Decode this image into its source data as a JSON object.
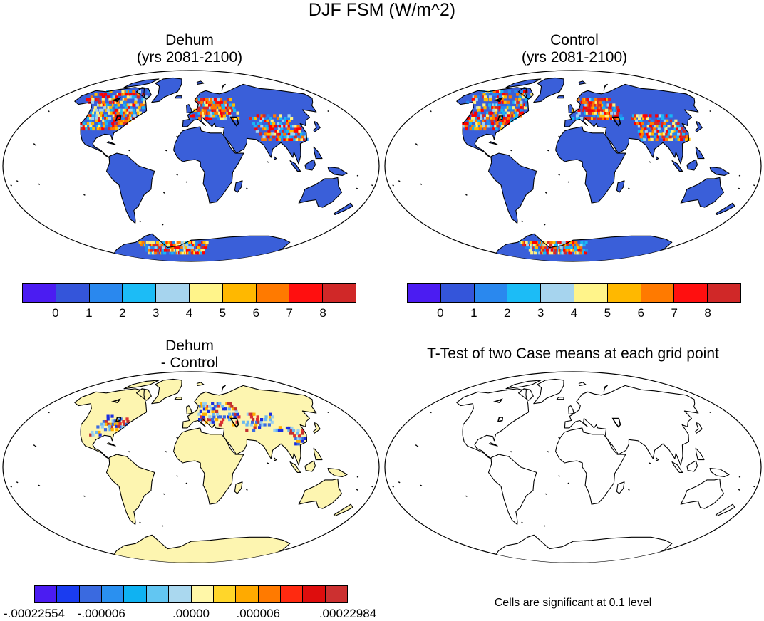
{
  "figure": {
    "title": "DJF FSM (W/m^2)"
  },
  "panels": [
    {
      "id": "dehum",
      "title_line1": "Dehum",
      "title_line2": "(yrs 2081-2100)",
      "land_color": "#3a5fd9",
      "hotspot_colors": [
        "#d62828",
        "#ff0000",
        "#ff7a00",
        "#ffbb00",
        "#ffef80",
        "#a0d2f0",
        "#19b6f5",
        "#2488f0"
      ],
      "colorbar": {
        "colors": [
          "#4b1cf2",
          "#3455da",
          "#2a88ee",
          "#1cbcf6",
          "#a6d4ee",
          "#fff48a",
          "#ffb800",
          "#ff7a00",
          "#ff0f0f",
          "#d02828"
        ],
        "labels": [
          "0",
          "1",
          "2",
          "3",
          "4",
          "5",
          "6",
          "7",
          "8"
        ]
      }
    },
    {
      "id": "control",
      "title_line1": "Control",
      "title_line2": "(yrs 2081-2100)",
      "land_color": "#3a5fd9",
      "hotspot_colors": [
        "#d62828",
        "#ff0000",
        "#ff7a00",
        "#ffbb00",
        "#ffef80",
        "#a0d2f0",
        "#19b6f5",
        "#2488f0"
      ],
      "colorbar": {
        "colors": [
          "#4b1cf2",
          "#3455da",
          "#2a88ee",
          "#1cbcf6",
          "#a6d4ee",
          "#fff48a",
          "#ffb800",
          "#ff7a00",
          "#ff0f0f",
          "#d02828"
        ],
        "labels": [
          "0",
          "1",
          "2",
          "3",
          "4",
          "5",
          "6",
          "7",
          "8"
        ]
      }
    },
    {
      "id": "diff",
      "title_line1": "Dehum",
      "title_line2": "- Control",
      "land_color": "#fdf5b0",
      "hotspot_colors": [
        "#1a2ee0",
        "#3b6be0",
        "#6ab8f0",
        "#c23030",
        "#e03030",
        "#ffb000",
        "#9acfee"
      ],
      "colorbar": {
        "colors": [
          "#4b1cf2",
          "#1a3cf0",
          "#3a6ae0",
          "#2a90f0",
          "#0fb2f2",
          "#62c6f2",
          "#aad8ef",
          "#fff7a8",
          "#ffd62a",
          "#ffaa00",
          "#ff7a00",
          "#ff2a10",
          "#de0d0d",
          "#cc3030"
        ],
        "labels": [
          "-.00022554",
          "-.000006",
          ".00000",
          ".000006",
          ".00022984"
        ]
      }
    },
    {
      "id": "ttest",
      "title_line1": "T-Test of two Case means at each grid point",
      "land_color": "#ffffff",
      "note": "Cells are significant at 0.1 level"
    }
  ]
}
